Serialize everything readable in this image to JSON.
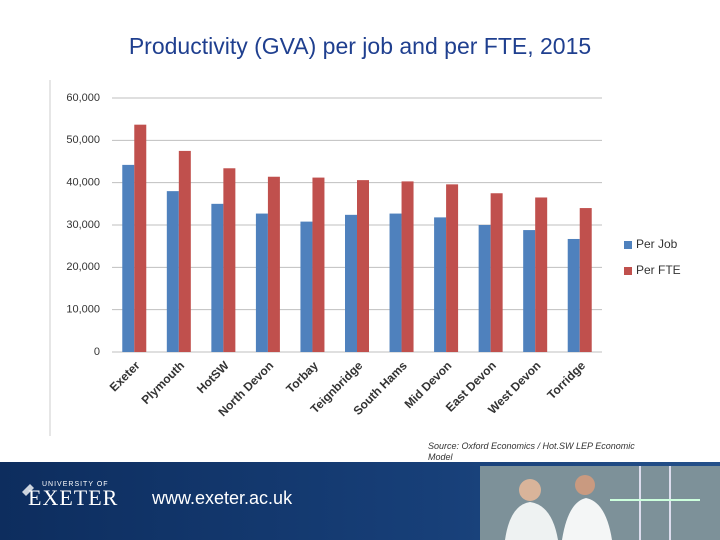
{
  "chart_data": {
    "type": "bar",
    "title": "Productivity (GVA) per job and per FTE, 2015",
    "categories": [
      "Exeter",
      "Plymouth",
      "HotSW",
      "North Devon",
      "Torbay",
      "Teignbridge",
      "South Hams",
      "Mid Devon",
      "East Devon",
      "West Devon",
      "Torridge"
    ],
    "series": [
      {
        "name": "Per Job",
        "color": "#4f81bd",
        "values": [
          44200,
          38000,
          35000,
          32700,
          30800,
          32400,
          32700,
          31800,
          30000,
          28800,
          26700
        ]
      },
      {
        "name": "Per FTE",
        "color": "#c0504d",
        "values": [
          53700,
          47500,
          43400,
          41400,
          41200,
          40600,
          40300,
          39600,
          37500,
          36500,
          34000
        ]
      }
    ],
    "ylim": [
      0,
      60000
    ],
    "yticks": [
      0,
      {
        "value": 10000,
        "label": "10,000"
      },
      {
        "value": 20000,
        "label": "20,000"
      },
      {
        "value": 30000,
        "label": "30,000"
      },
      {
        "value": 40000,
        "label": "40,000"
      },
      {
        "value": 50000,
        "label": "50,000"
      },
      {
        "value": 60000,
        "label": "60,000"
      }
    ],
    "grid": true,
    "legend": "right",
    "source": "Source: Oxford Economics / Hot.SW LEP Economic Model"
  },
  "footer": {
    "university": "UNIVERSITY OF",
    "name": "EXETER",
    "url": "www.exeter.ac.uk"
  }
}
